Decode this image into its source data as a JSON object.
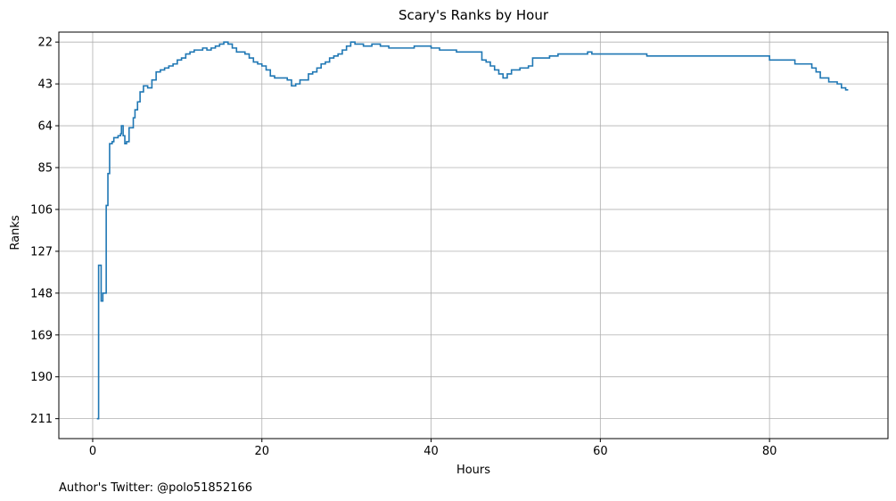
{
  "chart_data": {
    "type": "line",
    "step": true,
    "title": "Scary's Ranks by Hour",
    "xlabel": "Hours",
    "ylabel": "Ranks",
    "xlim": [
      -4,
      94
    ],
    "ylim": [
      221,
      17
    ],
    "y_inverted": true,
    "grid": true,
    "xticks": [
      0,
      20,
      40,
      60,
      80
    ],
    "yticks": [
      22,
      43,
      64,
      85,
      106,
      127,
      148,
      169,
      190,
      211
    ],
    "series": [
      {
        "color": "#1f77b4",
        "points": [
          [
            0.5,
            211
          ],
          [
            0.6,
            211
          ],
          [
            0.7,
            134
          ],
          [
            1.0,
            152
          ],
          [
            1.2,
            148
          ],
          [
            1.5,
            148
          ],
          [
            1.6,
            104
          ],
          [
            1.8,
            88
          ],
          [
            2.0,
            73
          ],
          [
            2.3,
            72
          ],
          [
            2.5,
            70
          ],
          [
            3.0,
            69
          ],
          [
            3.3,
            68
          ],
          [
            3.4,
            64
          ],
          [
            3.6,
            69
          ],
          [
            3.8,
            73
          ],
          [
            4.0,
            72
          ],
          [
            4.3,
            65
          ],
          [
            4.8,
            60
          ],
          [
            5.0,
            56
          ],
          [
            5.3,
            52
          ],
          [
            5.6,
            47
          ],
          [
            6.0,
            44
          ],
          [
            6.5,
            45
          ],
          [
            7.0,
            41
          ],
          [
            7.5,
            37
          ],
          [
            8.0,
            36
          ],
          [
            8.5,
            35
          ],
          [
            9.0,
            34
          ],
          [
            9.5,
            33
          ],
          [
            10.0,
            31
          ],
          [
            10.5,
            30
          ],
          [
            11.0,
            28
          ],
          [
            11.5,
            27
          ],
          [
            12.0,
            26
          ],
          [
            13.0,
            25
          ],
          [
            13.5,
            26
          ],
          [
            14.0,
            25
          ],
          [
            14.5,
            24
          ],
          [
            15.0,
            23
          ],
          [
            15.5,
            22
          ],
          [
            16.0,
            23
          ],
          [
            16.5,
            25
          ],
          [
            17.0,
            27
          ],
          [
            18.0,
            28
          ],
          [
            18.5,
            30
          ],
          [
            19.0,
            32
          ],
          [
            19.5,
            33
          ],
          [
            20.0,
            34
          ],
          [
            20.5,
            36
          ],
          [
            21.0,
            39
          ],
          [
            21.5,
            40
          ],
          [
            22.0,
            40
          ],
          [
            23.0,
            41
          ],
          [
            23.5,
            44
          ],
          [
            24.0,
            43
          ],
          [
            24.5,
            41
          ],
          [
            25.0,
            41
          ],
          [
            25.5,
            38
          ],
          [
            26.0,
            37
          ],
          [
            26.5,
            35
          ],
          [
            27.0,
            33
          ],
          [
            27.5,
            32
          ],
          [
            28.0,
            30
          ],
          [
            28.5,
            29
          ],
          [
            29.0,
            28
          ],
          [
            29.5,
            26
          ],
          [
            30.0,
            24
          ],
          [
            30.5,
            22
          ],
          [
            31.0,
            23
          ],
          [
            32.0,
            24
          ],
          [
            33.0,
            23
          ],
          [
            34.0,
            24
          ],
          [
            35.0,
            25
          ],
          [
            36.0,
            25
          ],
          [
            38.0,
            24
          ],
          [
            40.0,
            25
          ],
          [
            41.0,
            26
          ],
          [
            43.0,
            27
          ],
          [
            44.0,
            27
          ],
          [
            46.0,
            31
          ],
          [
            46.5,
            32
          ],
          [
            47.0,
            34
          ],
          [
            47.5,
            36
          ],
          [
            48.0,
            38
          ],
          [
            48.5,
            40
          ],
          [
            49.0,
            38
          ],
          [
            49.5,
            36
          ],
          [
            50.5,
            35
          ],
          [
            51.5,
            34
          ],
          [
            52.0,
            30
          ],
          [
            54.0,
            29
          ],
          [
            55.0,
            28
          ],
          [
            58.0,
            28
          ],
          [
            58.5,
            27
          ],
          [
            59.0,
            28
          ],
          [
            65.0,
            28
          ],
          [
            65.5,
            29
          ],
          [
            75.0,
            29
          ],
          [
            79.0,
            29
          ],
          [
            80.0,
            31
          ],
          [
            82.0,
            31
          ],
          [
            83.0,
            33
          ],
          [
            84.0,
            33
          ],
          [
            85.0,
            35
          ],
          [
            85.5,
            37
          ],
          [
            86.0,
            40
          ],
          [
            86.5,
            40
          ],
          [
            87.0,
            42
          ],
          [
            88.0,
            43
          ],
          [
            88.5,
            45
          ],
          [
            89.0,
            46
          ],
          [
            89.3,
            46
          ]
        ]
      }
    ]
  },
  "footer": {
    "text": "Author's Twitter: @polo51852166"
  }
}
